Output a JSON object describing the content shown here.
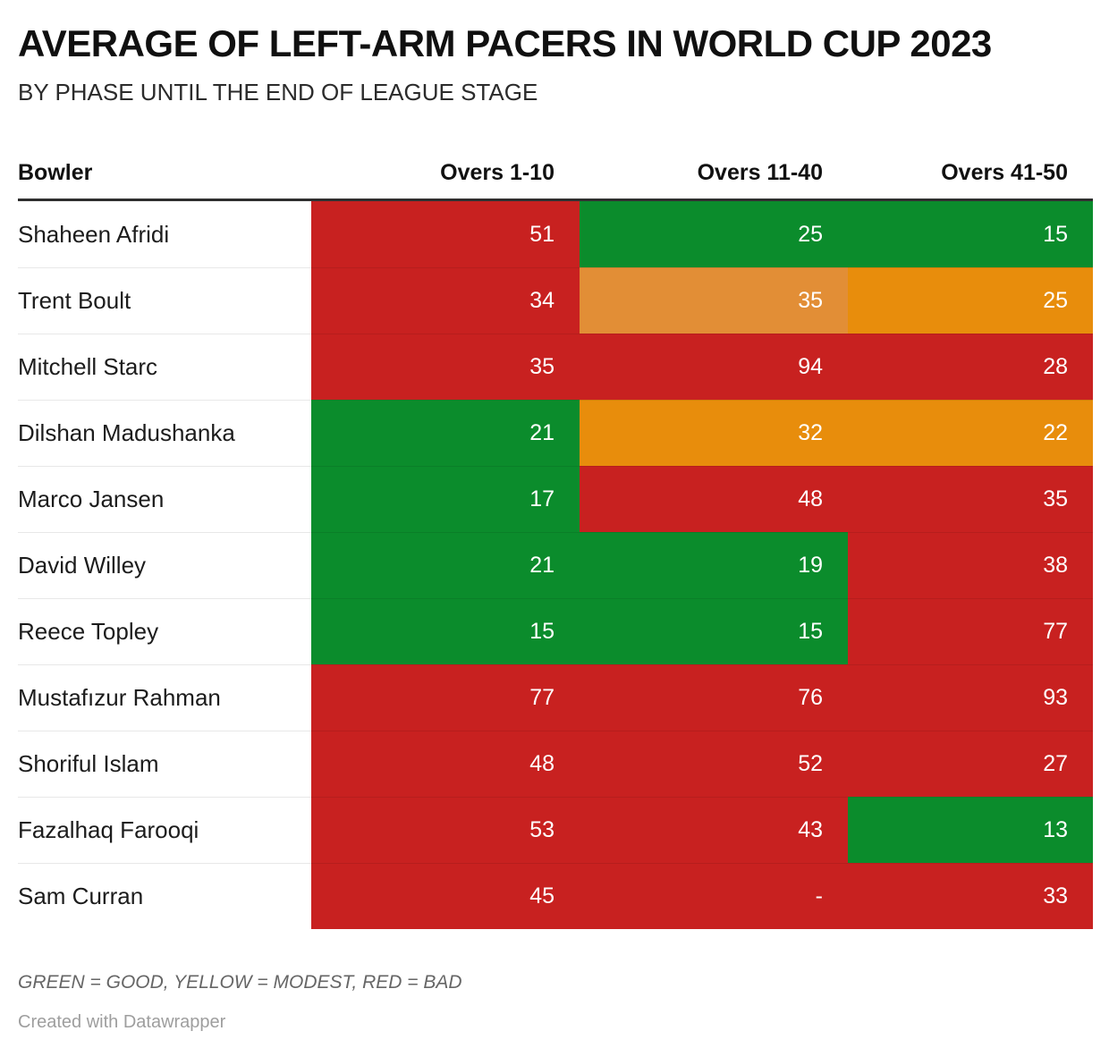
{
  "chart_data": {
    "type": "heatmap",
    "title": "AVERAGE OF LEFT-ARM PACERS IN WORLD CUP 2023",
    "subtitle": "BY PHASE UNTIL THE END OF LEAGUE STAGE",
    "col_header": "Bowler",
    "columns": [
      "Overs 1-10",
      "Overs 11-40",
      "Overs 41-50"
    ],
    "rows": [
      {
        "name": "Shaheen Afridi",
        "values": [
          51,
          25,
          15
        ],
        "colors": [
          "red",
          "green",
          "green"
        ]
      },
      {
        "name": "Trent Boult",
        "values": [
          34,
          35,
          25
        ],
        "colors": [
          "red",
          "orange_light",
          "orange"
        ]
      },
      {
        "name": "Mitchell Starc",
        "values": [
          35,
          94,
          28
        ],
        "colors": [
          "red",
          "red",
          "red"
        ]
      },
      {
        "name": "Dilshan Madushanka",
        "values": [
          21,
          32,
          22
        ],
        "colors": [
          "green",
          "orange",
          "orange"
        ]
      },
      {
        "name": "Marco Jansen",
        "values": [
          17,
          48,
          35
        ],
        "colors": [
          "green",
          "red",
          "red"
        ]
      },
      {
        "name": "David Willey",
        "values": [
          21,
          19,
          38
        ],
        "colors": [
          "green",
          "green",
          "red"
        ]
      },
      {
        "name": "Reece Topley",
        "values": [
          15,
          15,
          77
        ],
        "colors": [
          "green",
          "green",
          "red"
        ]
      },
      {
        "name": "Mustafızur Rahman",
        "values": [
          77,
          76,
          93
        ],
        "colors": [
          "red",
          "red",
          "red"
        ]
      },
      {
        "name": "Shoriful Islam",
        "values": [
          48,
          52,
          27
        ],
        "colors": [
          "red",
          "red",
          "red"
        ]
      },
      {
        "name": "Fazalhaq Farooqi",
        "values": [
          53,
          43,
          13
        ],
        "colors": [
          "red",
          "red",
          "green"
        ]
      },
      {
        "name": "Sam Curran",
        "values": [
          45,
          null,
          33
        ],
        "colors": [
          "red",
          "red",
          "red"
        ]
      }
    ],
    "missing_value_display": "-",
    "legend_note": "GREEN = GOOD, YELLOW = MODEST, RED = BAD"
  },
  "colors": {
    "red": "#c82120",
    "green": "#0b8c2c",
    "orange": "#e88d0c",
    "orange_light": "#e28e36"
  },
  "footer": {
    "attribution": "Created with Datawrapper"
  }
}
